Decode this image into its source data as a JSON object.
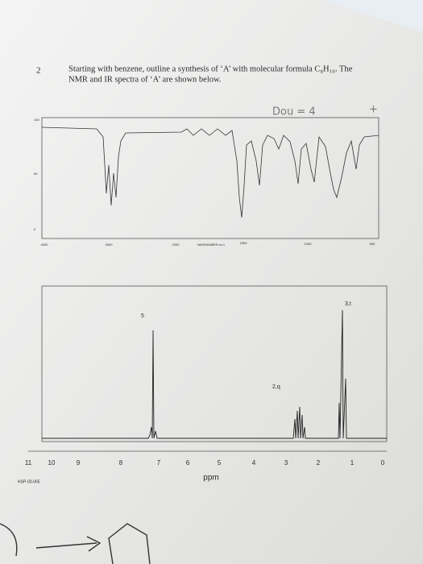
{
  "question": {
    "number": "2",
    "line1": "Starting with benzene, outline a synthesis of ‘A’ with molecular formula C₈H₁₀. The",
    "line2": "NMR and IR spectra of ‘A’ are shown below."
  },
  "handwriting": {
    "dou": "Dou = 4",
    "mark": "+"
  },
  "ir": {
    "y_ticks": [
      "100",
      "50",
      "0"
    ],
    "x_ticks": [
      "4000",
      "3000",
      "2000",
      "1500",
      "1000",
      "500"
    ],
    "x_label": "WAVENUMBER cm-1"
  },
  "nmr": {
    "peak_labels": [
      "5",
      "3,t",
      "2,q"
    ],
    "x_ticks": [
      "11",
      "10",
      "9",
      "8",
      "7",
      "6",
      "5",
      "4",
      "3",
      "2",
      "1",
      "0"
    ],
    "x_label": "ppm",
    "code": "HSP-00-065"
  }
}
